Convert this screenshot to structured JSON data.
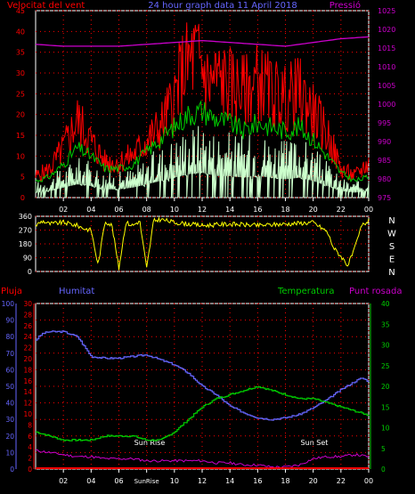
{
  "colors": {
    "wind_speed": "#ff0000",
    "wind_gust_avg": "#00cc00",
    "wind_min": "#ccffcc",
    "pressure": "#cc00cc",
    "direction": "#ffff00",
    "rain": "#ff0000",
    "humidity": "#6666ff",
    "temperature": "#00cc00",
    "dew_point": "#cc00cc",
    "grid": "#ff0000",
    "axes": "#ffffff"
  },
  "chart_data": [
    {
      "type": "line",
      "title": "24 hour graph data  11 April 2018",
      "left_axis_label": "Velocitat del vent",
      "right_axis_label": "Pressió",
      "x_ticks": [
        "02",
        "04",
        "06",
        "08",
        "10",
        "12",
        "14",
        "16",
        "18",
        "20",
        "22",
        "00"
      ],
      "x_range_hours": [
        0,
        24
      ],
      "ylim_left": [
        0,
        45
      ],
      "y_ticks_left": [
        "0",
        "5",
        "10",
        "15",
        "20",
        "25",
        "30",
        "35",
        "40",
        "45"
      ],
      "ylim_right": [
        975,
        1025
      ],
      "y_ticks_right": [
        "975",
        "980",
        "985",
        "990",
        "995",
        "1000",
        "1005",
        "1010",
        "1015",
        "1020",
        "1025"
      ],
      "grid": true,
      "series": [
        {
          "key": "wind_speed",
          "x": [
            0,
            1,
            2,
            3,
            4,
            5,
            6,
            7,
            8,
            9,
            10,
            10.5,
            11,
            11.5,
            12,
            12.5,
            13,
            14,
            15,
            16,
            17,
            18,
            19,
            20,
            21,
            22,
            23,
            24
          ],
          "values": [
            6,
            8,
            14,
            22,
            16,
            10,
            10,
            12,
            16,
            20,
            28,
            35,
            38,
            40,
            37,
            32,
            34,
            32,
            30,
            33,
            30,
            28,
            30,
            24,
            18,
            8,
            6,
            10
          ]
        },
        {
          "key": "wind_gust_avg",
          "x": [
            0,
            1,
            2,
            3,
            4,
            5,
            6,
            7,
            8,
            9,
            10,
            11,
            12,
            13,
            14,
            15,
            16,
            17,
            18,
            19,
            20,
            21,
            22,
            23,
            24
          ],
          "values": [
            4,
            5,
            8,
            12,
            10,
            7,
            7,
            8,
            11,
            14,
            17,
            20,
            21,
            19,
            18,
            16,
            18,
            17,
            16,
            17,
            14,
            10,
            6,
            4,
            5
          ]
        },
        {
          "key": "wind_min",
          "x": [
            0,
            1,
            2,
            3,
            4,
            5,
            6,
            7,
            8,
            9,
            10,
            11,
            12,
            13,
            14,
            15,
            16,
            17,
            18,
            19,
            20,
            21,
            22,
            23,
            24
          ],
          "values": [
            3,
            4,
            6,
            8,
            7,
            5,
            5,
            6,
            8,
            10,
            12,
            14,
            15,
            13,
            13,
            12,
            13,
            12,
            11,
            12,
            10,
            7,
            4,
            3,
            4
          ]
        },
        {
          "key": "pressure",
          "x": [
            0,
            2,
            4,
            6,
            8,
            10,
            12,
            14,
            16,
            18,
            20,
            22,
            24
          ],
          "values": [
            1016,
            1015.5,
            1015.5,
            1015.5,
            1016,
            1016.5,
            1017,
            1016.5,
            1016,
            1015.5,
            1016.5,
            1017.5,
            1018
          ]
        }
      ]
    },
    {
      "type": "line",
      "ylim": [
        0,
        360
      ],
      "y_ticks": [
        "0",
        "90",
        "180",
        "270",
        "360"
      ],
      "compass_labels": [
        "N",
        "W",
        "S",
        "E",
        "N"
      ],
      "series": [
        {
          "key": "direction",
          "x": [
            0,
            0.5,
            1,
            2,
            3,
            3.5,
            4,
            4.5,
            5,
            5.5,
            6,
            6.5,
            7,
            7.5,
            8,
            8.5,
            9,
            10,
            12,
            14,
            16,
            18,
            20,
            21,
            21.5,
            22,
            22.5,
            23,
            23.5,
            24
          ],
          "values": [
            300,
            330,
            310,
            320,
            300,
            280,
            270,
            40,
            330,
            300,
            20,
            320,
            300,
            330,
            20,
            330,
            340,
            320,
            300,
            310,
            300,
            310,
            320,
            260,
            150,
            100,
            40,
            150,
            300,
            330
          ]
        }
      ]
    },
    {
      "type": "line",
      "left_labels": [
        "Pluja",
        "Humitat"
      ],
      "right_labels": [
        "Temperatura",
        "Punt rosada"
      ],
      "x_ticks": [
        "02",
        "04",
        "06",
        "SunRise",
        "10",
        "12",
        "14",
        "16",
        "18",
        "20",
        "22",
        "00"
      ],
      "x_range_hours": [
        0,
        24
      ],
      "ylim_humidity": [
        0,
        100
      ],
      "y_ticks_humidity": [
        "0",
        "10",
        "20",
        "30",
        "40",
        "50",
        "60",
        "70",
        "80",
        "90",
        "100"
      ],
      "ylim_rain": [
        0,
        30
      ],
      "y_ticks_rain": [
        "0",
        "2",
        "4",
        "6",
        "8",
        "10",
        "12",
        "14",
        "16",
        "18",
        "20",
        "22",
        "24",
        "26",
        "28",
        "30"
      ],
      "ylim_temp": [
        0,
        40
      ],
      "y_ticks_temp": [
        "0",
        "5",
        "10",
        "15",
        "20",
        "25",
        "30",
        "35",
        "40"
      ],
      "annotations": [
        "Sun Rise",
        "Sun Set"
      ],
      "series": [
        {
          "key": "rain",
          "x": [
            0,
            24
          ],
          "values": [
            0,
            0
          ]
        },
        {
          "key": "humidity",
          "x": [
            0,
            0.5,
            1,
            2,
            3,
            4,
            5,
            6,
            7,
            8,
            9,
            10,
            11,
            12,
            13,
            14,
            15,
            16,
            17,
            18,
            19,
            20,
            21,
            22,
            23,
            23.5,
            24
          ],
          "values": [
            78,
            82,
            83,
            83,
            80,
            68,
            67,
            67,
            68,
            69,
            66,
            63,
            58,
            50,
            45,
            38,
            34,
            31,
            30,
            31,
            33,
            37,
            42,
            48,
            53,
            55,
            53
          ]
        },
        {
          "key": "temperature",
          "x": [
            0,
            1,
            2,
            3,
            4,
            5,
            6,
            7,
            8,
            9,
            10,
            11,
            12,
            13,
            14,
            15,
            16,
            17,
            18,
            19,
            20,
            21,
            22,
            23,
            24
          ],
          "values": [
            9,
            8,
            7,
            7,
            7,
            8,
            8,
            8,
            7,
            7,
            9,
            12,
            15,
            17,
            18,
            19,
            20,
            19,
            18,
            17,
            17,
            16,
            15,
            14,
            13
          ]
        },
        {
          "key": "dew_point",
          "x": [
            0,
            1,
            2,
            3,
            4,
            5,
            6,
            7,
            8,
            9,
            10,
            11,
            12,
            13,
            14,
            15,
            16,
            17,
            18,
            19,
            20,
            21,
            22,
            23,
            24
          ],
          "values": [
            4.5,
            4,
            3.5,
            3,
            3,
            2.5,
            2.5,
            2.5,
            2,
            2,
            2,
            2,
            2,
            1.5,
            1.5,
            1,
            1,
            0.5,
            0.5,
            1,
            2.5,
            3,
            3,
            3.5,
            3
          ]
        }
      ]
    }
  ]
}
